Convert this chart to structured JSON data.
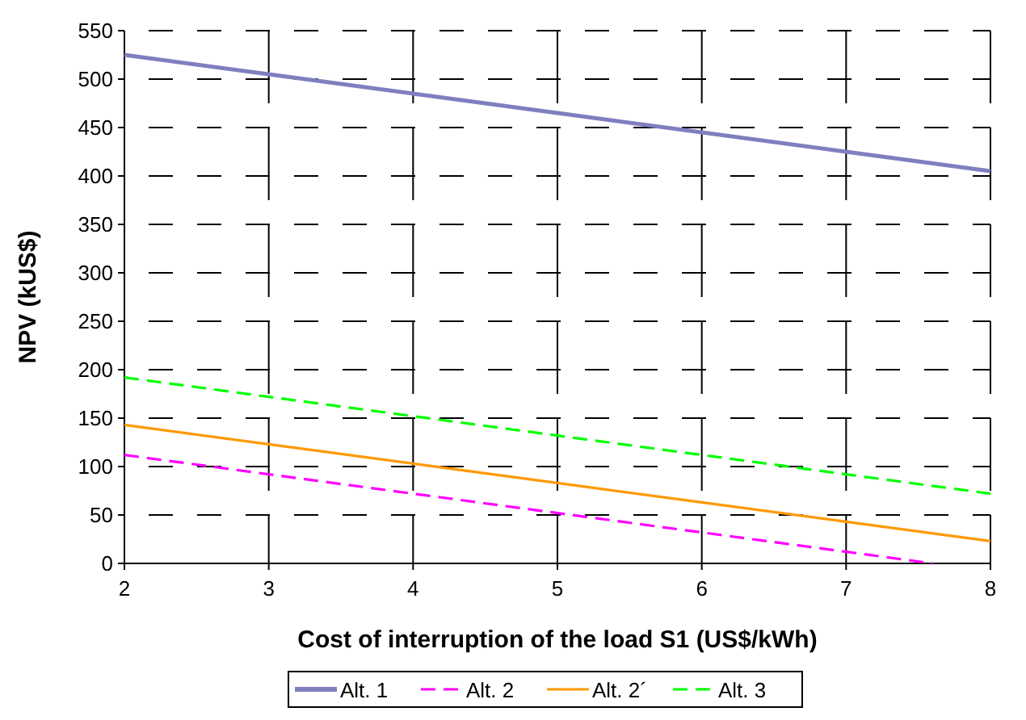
{
  "chart_data": {
    "type": "line",
    "xlabel": "Cost of interruption of the load S1 (US$/kWh)",
    "ylabel": "NPV (kUS$)",
    "x": [
      2,
      3,
      4,
      5,
      6,
      7,
      8
    ],
    "xlim": [
      2,
      8
    ],
    "xticks": [
      2,
      3,
      4,
      5,
      6,
      7,
      8
    ],
    "ylim": [
      0,
      550
    ],
    "yticks": [
      0,
      50,
      100,
      150,
      200,
      250,
      300,
      350,
      400,
      450,
      500,
      550
    ],
    "grid": true,
    "legend": "bottom",
    "marker": "none",
    "series": [
      {
        "name": "Alt. 1",
        "color": "#7f7fbf",
        "line_style": "solid",
        "values": [
          525,
          505,
          485,
          465,
          445,
          425,
          405
        ]
      },
      {
        "name": "Alt. 2",
        "color": "#ff00ff",
        "line_style": "dashed",
        "x": [
          2,
          3,
          4,
          5,
          6,
          7,
          7.6
        ],
        "values": [
          112,
          92,
          72,
          52,
          32,
          12,
          0
        ]
      },
      {
        "name": "Alt. 2´",
        "color": "#ff9900",
        "line_style": "solid",
        "values": [
          143,
          123,
          103,
          83,
          63,
          43,
          23
        ]
      },
      {
        "name": "Alt. 3",
        "color": "#00ff00",
        "line_style": "dashed",
        "values": [
          192,
          172,
          152,
          132,
          112,
          92,
          72
        ]
      }
    ]
  }
}
